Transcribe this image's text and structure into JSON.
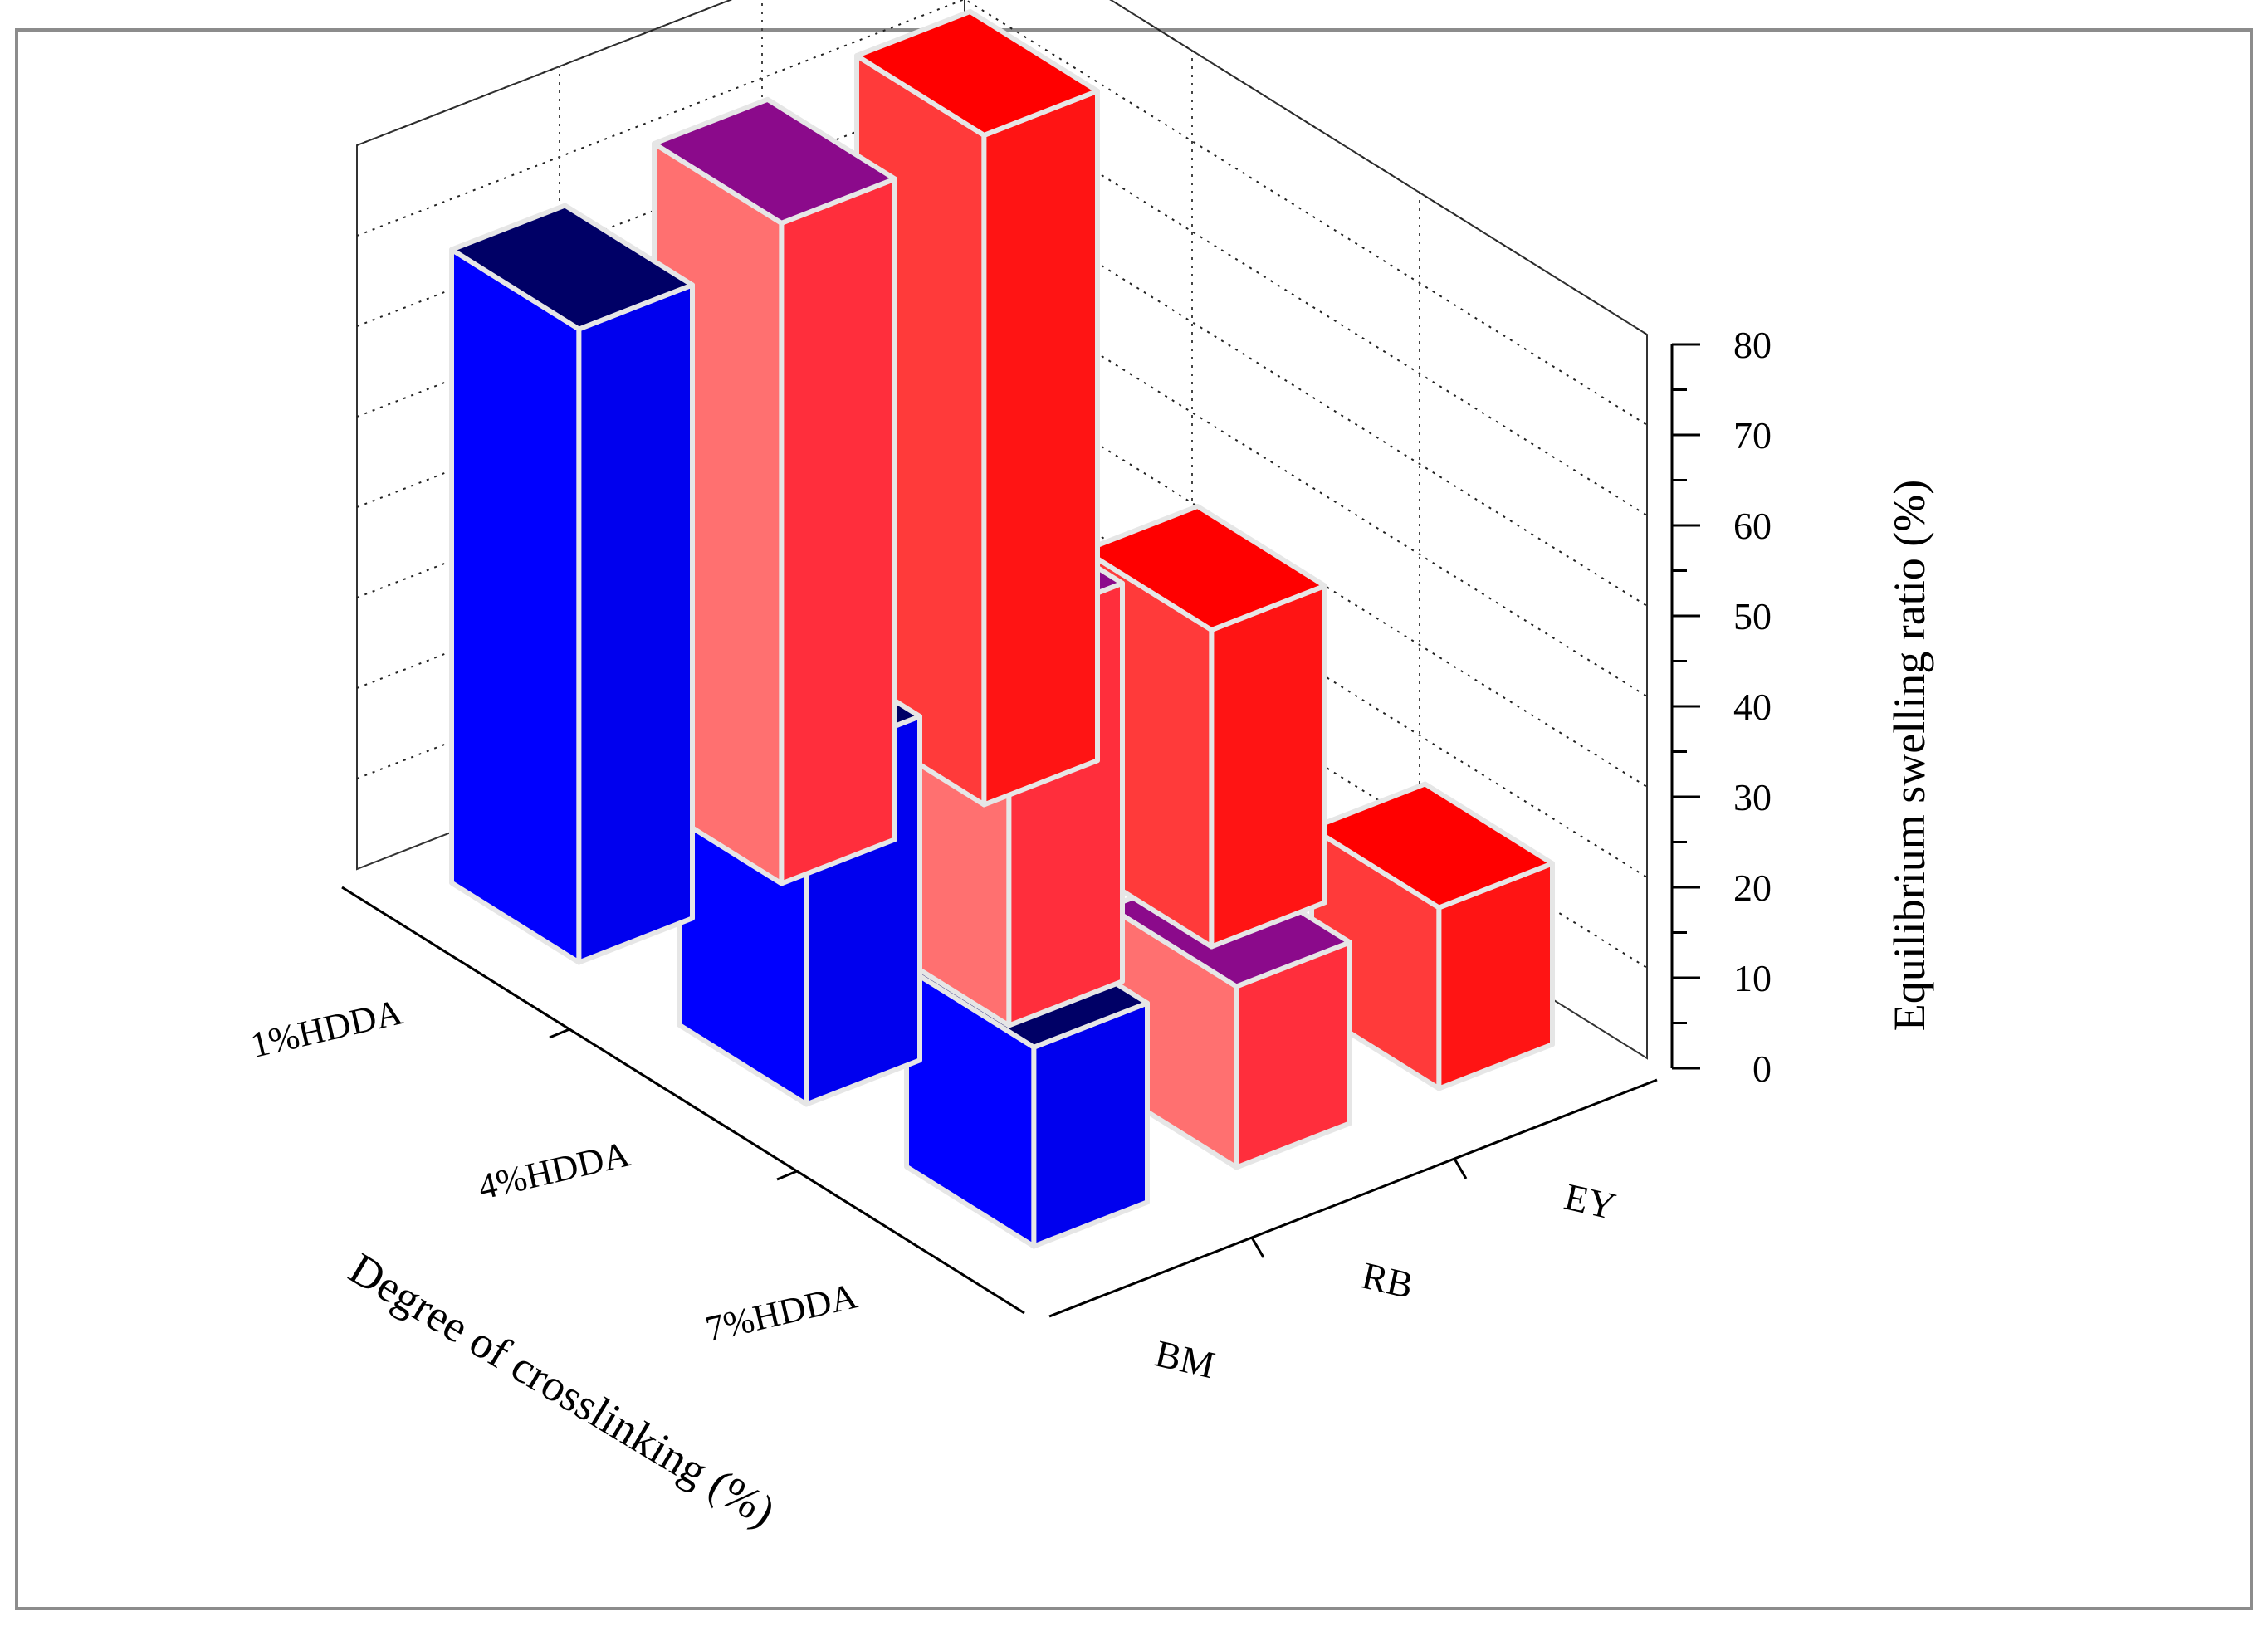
{
  "chart_data": {
    "type": "bar",
    "subtype": "3d-grouped-bar",
    "title": "",
    "zlabel": "Equilibrium swelling ratio (%)",
    "xlabel": "Degree of crosslinking (%)",
    "ylabel": "",
    "categories": [
      "1%HDDA",
      "4%HDDA",
      "7%HDDA"
    ],
    "series": [
      {
        "name": "BM",
        "values": [
          70,
          38,
          22
        ],
        "color": "#0000ff",
        "top_color": "#000066"
      },
      {
        "name": "RB",
        "values": [
          73,
          44,
          20
        ],
        "color": "#ff7070",
        "top_color": "#8b0a8b"
      },
      {
        "name": "EY",
        "values": [
          74,
          35,
          20
        ],
        "color": "#ff3a3a",
        "top_color": "#ff0000"
      }
    ],
    "zlim": [
      0,
      80
    ],
    "zticks": [
      0,
      10,
      20,
      30,
      40,
      50,
      60,
      70,
      80
    ],
    "grid": true
  }
}
